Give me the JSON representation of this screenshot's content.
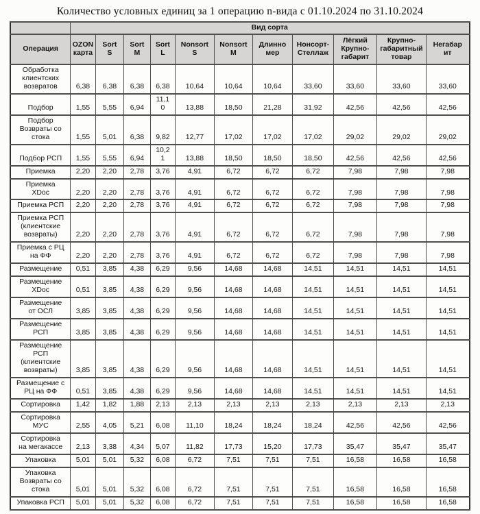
{
  "page": {
    "title": "Количество условных единиц за 1 операцию n-вида с 01.10.2024 по 31.10.2024"
  },
  "colors": {
    "header_bg": "#d6d5d3",
    "border": "#4d4d4d",
    "outer_border": "#2e2e2e",
    "page_bg": "#fcfcfa",
    "text": "#161616"
  },
  "table": {
    "group_header": "Вид сорта",
    "operation_header": "Операция",
    "columns": [
      "OZON\nкарта",
      "Sort\nS",
      "Sort\nM",
      "Sort\nL",
      "Nonsort\nS",
      "Nonsort\nM",
      "Длинно\nмер",
      "Нонсорт-\nСтеллаж",
      "Лёгкий\nКрупно-\nгабарит",
      "Крупно-\nгабаритный\nтовар",
      "Негабар\nит"
    ],
    "rows": [
      {
        "operation": "Обработка\nклиентских\nвозвратов",
        "values": [
          "6,38",
          "6,38",
          "6,38",
          "6,38",
          "10,64",
          "10,64",
          "10,64",
          "33,60",
          "33,60",
          "33,60",
          "33,60"
        ]
      },
      {
        "operation": "Подбор",
        "values": [
          "1,55",
          "5,55",
          "6,94",
          "11,1\n0",
          "13,88",
          "18,50",
          "21,28",
          "31,92",
          "42,56",
          "42,56",
          "42,56"
        ]
      },
      {
        "operation": "Подбор\nВозвраты со\nстока",
        "values": [
          "1,55",
          "5,01",
          "6,38",
          "9,82",
          "12,77",
          "17,02",
          "17,02",
          "17,02",
          "29,02",
          "29,02",
          "29,02"
        ]
      },
      {
        "operation": "Подбор РСП",
        "values": [
          "1,55",
          "5,55",
          "6,94",
          "10,2\n1",
          "13,88",
          "18,50",
          "18,50",
          "18,50",
          "42,56",
          "42,56",
          "42,56"
        ]
      },
      {
        "operation": "Приемка",
        "values": [
          "2,20",
          "2,20",
          "2,78",
          "3,76",
          "4,91",
          "6,72",
          "6,72",
          "6,72",
          "7,98",
          "7,98",
          "7,98"
        ]
      },
      {
        "operation": "Приемка\nXDoc",
        "values": [
          "2,20",
          "2,20",
          "2,78",
          "3,76",
          "4,91",
          "6,72",
          "6,72",
          "6,72",
          "7,98",
          "7,98",
          "7,98"
        ]
      },
      {
        "operation": "Приемка РСП",
        "values": [
          "2,20",
          "2,20",
          "2,78",
          "3,76",
          "4,91",
          "6,72",
          "6,72",
          "6,72",
          "7,98",
          "7,98",
          "7,98"
        ]
      },
      {
        "operation": "Приемка РСП\n(клиентские\nвозвраты)",
        "values": [
          "2,20",
          "2,20",
          "2,78",
          "3,76",
          "4,91",
          "6,72",
          "6,72",
          "6,72",
          "7,98",
          "7,98",
          "7,98"
        ]
      },
      {
        "operation": "Приемка с РЦ\nна ФФ",
        "values": [
          "2,20",
          "2,20",
          "2,78",
          "3,76",
          "4,91",
          "6,72",
          "6,72",
          "6,72",
          "7,98",
          "7,98",
          "7,98"
        ]
      },
      {
        "operation": "Размещение",
        "values": [
          "0,51",
          "3,85",
          "4,38",
          "6,29",
          "9,56",
          "14,68",
          "14,68",
          "14,51",
          "14,51",
          "14,51",
          "14,51"
        ]
      },
      {
        "operation": "Размещение\nXDoc",
        "values": [
          "0,51",
          "3,85",
          "4,38",
          "6,29",
          "9,56",
          "14,68",
          "14,68",
          "14,51",
          "14,51",
          "14,51",
          "14,51"
        ]
      },
      {
        "operation": "Размещение\nот ОСЛ",
        "values": [
          "3,85",
          "3,85",
          "4,38",
          "6,29",
          "9,56",
          "14,68",
          "14,68",
          "14,51",
          "14,51",
          "14,51",
          "14,51"
        ]
      },
      {
        "operation": "Размещение\nРСП",
        "values": [
          "3,85",
          "3,85",
          "4,38",
          "6,29",
          "9,56",
          "14,68",
          "14,68",
          "14,51",
          "14,51",
          "14,51",
          "14,51"
        ]
      },
      {
        "operation": "Размещение\nРСП\n(клиентские\nвозвраты)",
        "values": [
          "3,85",
          "3,85",
          "4,38",
          "6,29",
          "9,56",
          "14,68",
          "14,68",
          "14,51",
          "14,51",
          "14,51",
          "14,51"
        ]
      },
      {
        "operation": "Размещение с\nРЦ на ФФ",
        "values": [
          "0,51",
          "3,85",
          "4,38",
          "6,29",
          "9,56",
          "14,68",
          "14,68",
          "14,51",
          "14,51",
          "14,51",
          "14,51"
        ]
      },
      {
        "operation": "Сортировка",
        "values": [
          "1,42",
          "1,82",
          "1,88",
          "2,13",
          "2,13",
          "2,13",
          "2,13",
          "2,13",
          "2,13",
          "2,13",
          "2,13"
        ]
      },
      {
        "operation": "Сортировка\nМУС",
        "values": [
          "2,55",
          "4,05",
          "5,21",
          "6,08",
          "11,10",
          "18,24",
          "18,24",
          "18,24",
          "42,56",
          "42,56",
          "42,56"
        ]
      },
      {
        "operation": "Сортировка\nна мегакассе",
        "values": [
          "2,13",
          "3,38",
          "4,34",
          "5,07",
          "11,82",
          "17,73",
          "15,20",
          "17,73",
          "35,47",
          "35,47",
          "35,47"
        ]
      },
      {
        "operation": "Упаковка",
        "values": [
          "5,01",
          "5,01",
          "5,32",
          "6,08",
          "6,72",
          "7,51",
          "7,51",
          "7,51",
          "16,58",
          "16,58",
          "16,58"
        ]
      },
      {
        "operation": "Упаковка\nВозвраты со\nстока",
        "values": [
          "5,01",
          "5,01",
          "5,32",
          "6,08",
          "6,72",
          "7,51",
          "7,51",
          "7,51",
          "16,58",
          "16,58",
          "16,58"
        ]
      },
      {
        "operation": "Упаковка РСП",
        "values": [
          "5,01",
          "5,01",
          "5,32",
          "6,08",
          "6,72",
          "7,51",
          "7,51",
          "7,51",
          "16,58",
          "16,58",
          "16,58"
        ]
      }
    ]
  }
}
